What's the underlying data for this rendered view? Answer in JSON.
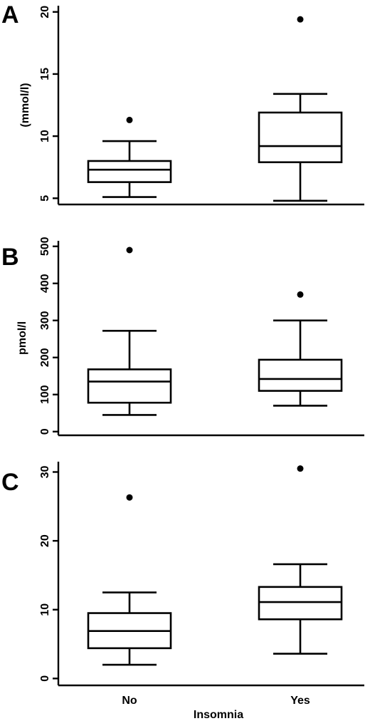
{
  "chart_data": [
    {
      "type": "boxplot",
      "panel": "A",
      "ylabel": "(mmol/l)",
      "xlabel": "",
      "ylim": [
        4.5,
        20.5
      ],
      "yticks": [
        5,
        10,
        15,
        20
      ],
      "categories": [
        "No",
        "Yes"
      ],
      "boxes": [
        {
          "category": "No",
          "whisker_low": 5.1,
          "q1": 6.3,
          "median": 7.3,
          "q3": 8.0,
          "whisker_high": 9.6,
          "outliers": [
            11.3
          ]
        },
        {
          "category": "Yes",
          "whisker_low": 4.8,
          "q1": 7.9,
          "median": 9.2,
          "q3": 11.9,
          "whisker_high": 13.4,
          "outliers": [
            19.4
          ]
        }
      ]
    },
    {
      "type": "boxplot",
      "panel": "B",
      "ylabel": "pmol/l",
      "xlabel": "",
      "ylim": [
        -10,
        515
      ],
      "yticks": [
        0,
        100,
        200,
        300,
        400,
        500
      ],
      "categories": [
        "No",
        "Yes"
      ],
      "boxes": [
        {
          "category": "No",
          "whisker_low": 45,
          "q1": 78,
          "median": 135,
          "q3": 168,
          "whisker_high": 272,
          "outliers": [
            490
          ]
        },
        {
          "category": "Yes",
          "whisker_low": 70,
          "q1": 110,
          "median": 142,
          "q3": 194,
          "whisker_high": 300,
          "outliers": [
            370
          ]
        }
      ]
    },
    {
      "type": "boxplot",
      "panel": "C",
      "ylabel": "",
      "xlabel": "Insomnia",
      "ylim": [
        -1,
        31.5
      ],
      "yticks": [
        0,
        10,
        20,
        30
      ],
      "categories": [
        "No",
        "Yes"
      ],
      "boxes": [
        {
          "category": "No",
          "whisker_low": 2.0,
          "q1": 4.4,
          "median": 6.9,
          "q3": 9.5,
          "whisker_high": 12.5,
          "outliers": [
            26.3
          ]
        },
        {
          "category": "Yes",
          "whisker_low": 3.6,
          "q1": 8.6,
          "median": 11.1,
          "q3": 13.3,
          "whisker_high": 16.6,
          "outliers": [
            30.5
          ]
        }
      ]
    }
  ]
}
